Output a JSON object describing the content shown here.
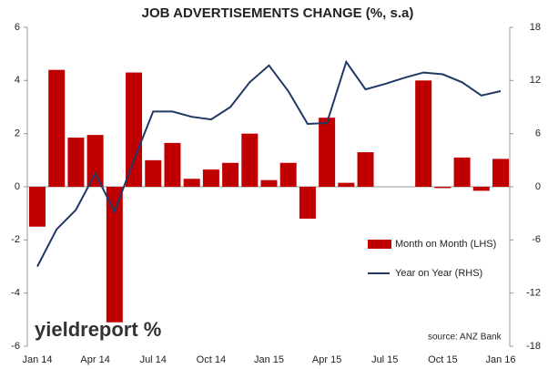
{
  "chart_data": {
    "type": "bar_line",
    "title": "JOB ADVERTISEMENTS CHANGE (%, s.a)",
    "categories": [
      "Jan 14",
      null,
      null,
      "Apr 14",
      null,
      null,
      "Jul 14",
      null,
      null,
      "Oct 14",
      null,
      null,
      "Jan 15",
      null,
      null,
      "Apr 15",
      null,
      null,
      "Jul 15",
      null,
      null,
      "Oct 15",
      null,
      null,
      "Jan 16"
    ],
    "series": [
      {
        "name": "Month on Month (LHS)",
        "type": "bar",
        "color": "#c00000",
        "axis": "y",
        "values": [
          -1.5,
          4.4,
          1.85,
          1.95,
          -5.1,
          4.3,
          1.0,
          1.65,
          0.3,
          0.65,
          0.9,
          2.0,
          0.25,
          0.9,
          -1.2,
          2.6,
          0.15,
          1.3,
          0,
          0,
          4.0,
          -0.05,
          1.1,
          -0.15,
          1.05
        ]
      },
      {
        "name": "Year on Year (RHS)",
        "type": "line",
        "color": "#1f3864",
        "axis": "y2",
        "values": [
          -9,
          -4.8,
          -2.6,
          1.5,
          -2.8,
          3,
          8.5,
          8.5,
          7.9,
          7.6,
          9,
          11.8,
          13.7,
          10.8,
          7.1,
          7.2,
          14.1,
          11,
          11.6,
          12.3,
          12.9,
          12.7,
          11.8,
          10.3,
          10.8
        ]
      }
    ],
    "ylim": [
      -6,
      6
    ],
    "yticks": [
      -6,
      -4,
      -2,
      0,
      2,
      4,
      6
    ],
    "y2lim": [
      -18,
      18
    ],
    "y2ticks": [
      -18,
      -12,
      -6,
      0,
      6,
      12,
      18
    ],
    "grid": false,
    "source": "source: ANZ Bank",
    "logo": "yieldreport %"
  }
}
